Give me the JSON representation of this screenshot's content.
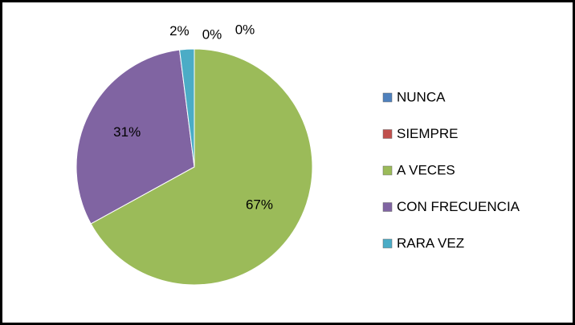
{
  "chart_data": {
    "type": "pie",
    "categories": [
      "NUNCA",
      "SIEMPRE",
      "A VECES",
      "CON FRECUENCIA",
      "RARA VEZ"
    ],
    "values": [
      0,
      0,
      67,
      31,
      2
    ],
    "value_labels": [
      "0%",
      "0%",
      "67%",
      "31%",
      "2%"
    ],
    "colors": [
      "#4f81bd",
      "#c0504d",
      "#9bbb59",
      "#8064a2",
      "#4bacc6"
    ],
    "legend": "right"
  }
}
